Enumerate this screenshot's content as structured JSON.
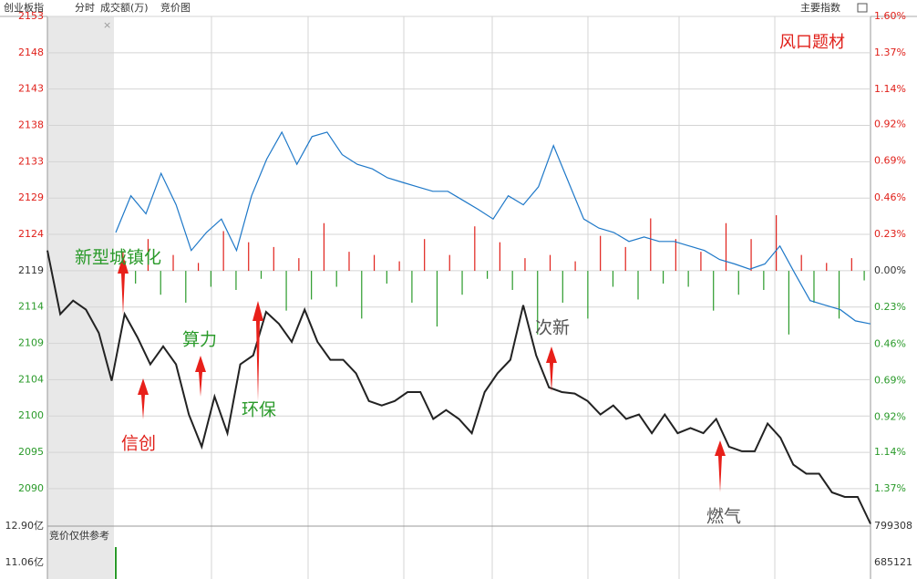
{
  "header": {
    "index": "创业板指",
    "tabs": [
      "分时",
      "成交额(万)",
      "竞价图"
    ],
    "menu": "主要指数"
  },
  "chart_data": {
    "type": "line",
    "title": "风口题材",
    "ylim": [
      2084.8,
      2152.85
    ],
    "yticks": [
      {
        "value": 2152.85,
        "label": "2153"
      },
      {
        "value": 2148.0,
        "label": "2148"
      },
      {
        "value": 2143.15,
        "label": "2143"
      },
      {
        "value": 2138.3,
        "label": "2138"
      },
      {
        "value": 2133.45,
        "label": "2133"
      },
      {
        "value": 2128.6,
        "label": "2129"
      },
      {
        "value": 2123.75,
        "label": "2124"
      },
      {
        "value": 2118.9,
        "label": "2119"
      },
      {
        "value": 2114.05,
        "label": "2114"
      },
      {
        "value": 2109.2,
        "label": "2109"
      },
      {
        "value": 2104.35,
        "label": "2104"
      },
      {
        "value": 2099.5,
        "label": "2100"
      },
      {
        "value": 2094.65,
        "label": "2095"
      },
      {
        "value": 2089.8,
        "label": "2090"
      }
    ],
    "y2lim": [
      -1.605,
      1.6
    ],
    "y2ticks": [
      {
        "value": 1.6,
        "label": "1.60%"
      },
      {
        "value": 1.37,
        "label": "1.37%"
      },
      {
        "value": 1.14,
        "label": "1.14%"
      },
      {
        "value": 0.92,
        "label": "0.92%"
      },
      {
        "value": 0.69,
        "label": "0.69%"
      },
      {
        "value": 0.46,
        "label": "0.46%"
      },
      {
        "value": 0.23,
        "label": "0.23%"
      },
      {
        "value": 0,
        "label": "0.00%"
      },
      {
        "value": -0.23,
        "label": "0.23%"
      },
      {
        "value": -0.46,
        "label": "0.46%"
      },
      {
        "value": -0.69,
        "label": "0.69%"
      },
      {
        "value": -0.92,
        "label": "0.92%"
      },
      {
        "value": -1.14,
        "label": "1.14%"
      },
      {
        "value": -1.37,
        "label": "1.37%"
      }
    ],
    "grid": true,
    "series": [
      {
        "color": "#222222",
        "values": [
          2121.6,
          2113.1,
          2114.9,
          2113.7,
          2110.6,
          2104.2,
          2113.1,
          2110.0,
          2106.4,
          2108.8,
          2106.4,
          2099.7,
          2095.4,
          2102.1,
          2097.2,
          2106.4,
          2107.6,
          2113.4,
          2111.8,
          2109.4,
          2113.7,
          2109.4,
          2107.0,
          2107.0,
          2105.2,
          2101.5,
          2100.9,
          2101.5,
          2102.7,
          2102.7,
          2099.1,
          2100.3,
          2099.1,
          2097.2,
          2102.7,
          2105.2,
          2107.0,
          2114.3,
          2107.6,
          2103.3,
          2102.7,
          2102.5,
          2101.5,
          2099.7,
          2100.9,
          2099.1,
          2099.7,
          2097.2,
          2099.7,
          2097.2,
          2097.9,
          2097.2,
          2099.1,
          2095.4,
          2094.8,
          2094.8,
          2098.5,
          2096.6,
          2093.0,
          2091.8,
          2091.8,
          2089.3,
          2088.7,
          2088.7,
          2085.1
        ]
      },
      {
        "color": "#1e78c8",
        "values": [
          2124.0,
          2128.9,
          2126.5,
          2131.9,
          2127.7,
          2121.6,
          2124.0,
          2125.8,
          2121.6,
          2128.9,
          2133.8,
          2137.4,
          2133.1,
          2136.8,
          2137.4,
          2134.4,
          2133.1,
          2132.5,
          2131.3,
          2130.7,
          2130.1,
          2129.5,
          2129.5,
          2128.3,
          2127.1,
          2125.8,
          2128.9,
          2127.7,
          2130.1,
          2135.6,
          2130.7,
          2125.8,
          2124.6,
          2124.0,
          2122.8,
          2123.4,
          2122.8,
          2122.8,
          2122.2,
          2121.6,
          2120.4,
          2119.8,
          2119.1,
          2119.8,
          2122.2,
          2118.5,
          2114.9,
          2114.3,
          2113.7,
          2112.2,
          2111.8
        ]
      },
      {
        "type": "bar",
        "axis": "y2",
        "color": "#e0201a",
        "negative_color": "#2a9a2a",
        "values": [
          0.12,
          -0.08,
          0.2,
          -0.15,
          0.1,
          -0.2,
          0.05,
          -0.1,
          0.25,
          -0.12,
          0.18,
          -0.05,
          0.15,
          -0.25,
          0.08,
          -0.18,
          0.3,
          -0.1,
          0.12,
          -0.3,
          0.1,
          -0.08,
          0.06,
          -0.2,
          0.2,
          -0.35,
          0.1,
          -0.15,
          0.28,
          -0.05,
          0.18,
          -0.12,
          0.08,
          -0.4,
          0.1,
          -0.2,
          0.06,
          -0.3,
          0.22,
          -0.1,
          0.15,
          -0.18,
          0.33,
          -0.08,
          0.2,
          -0.1,
          0.12,
          -0.25,
          0.3,
          -0.15,
          0.2,
          -0.12,
          0.35,
          -0.4,
          0.1,
          -0.2,
          0.05,
          -0.3,
          0.08,
          -0.06
        ]
      }
    ],
    "annotations": [
      "新型城镇化",
      "信创",
      "算力",
      "环保",
      "次新",
      "燃气"
    ]
  },
  "volume_panel": {
    "left_labels": [
      "12.90亿",
      "11.06亿"
    ],
    "note": "竞价仅供参考",
    "right_labels": [
      "799308",
      "685121"
    ]
  }
}
